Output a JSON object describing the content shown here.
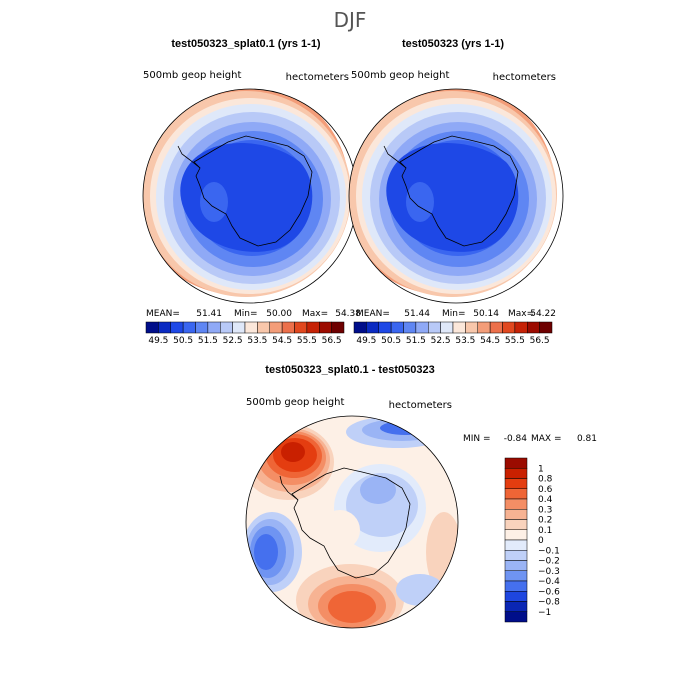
{
  "page": {
    "title": "DJF",
    "colors": {
      "background": "#ffffff",
      "outline": "#000000"
    }
  },
  "chart_data": [
    {
      "type": "polar-contour",
      "id": "left",
      "title": "test050323_splat0.1 (yrs 1-1)",
      "left_label": "500mb  geop  height",
      "right_label": "hectometers",
      "mean_label": "MEAN=",
      "mean": "51.41",
      "min_label": "Min=",
      "min": "50.00",
      "max_label": "Max=",
      "max": "54.38",
      "levels": [
        "49.5",
        "50.5",
        "51.5",
        "52.5",
        "53.5",
        "54.5",
        "55.5",
        "56.5"
      ],
      "palette": [
        "#000e8a",
        "#0a2ac2",
        "#1e48e6",
        "#3a66f0",
        "#5f86f3",
        "#8fa9f6",
        "#b8c9f7",
        "#dfe8f9",
        "#fbe7da",
        "#f8c7ab",
        "#f39d79",
        "#ec704b",
        "#e1481f",
        "#c62206",
        "#9c0b00",
        "#6e0000"
      ]
    },
    {
      "type": "polar-contour",
      "id": "right",
      "title": "test050323 (yrs 1-1)",
      "left_label": "500mb  geop  height",
      "right_label": "hectometers",
      "mean_label": "MEAN=",
      "mean": "51.44",
      "min_label": "Min=",
      "min": "50.14",
      "max_label": "Max=",
      "max": "54.22",
      "levels": [
        "49.5",
        "50.5",
        "51.5",
        "52.5",
        "53.5",
        "54.5",
        "55.5",
        "56.5"
      ],
      "palette": [
        "#000e8a",
        "#0a2ac2",
        "#1e48e6",
        "#3a66f0",
        "#5f86f3",
        "#8fa9f6",
        "#b8c9f7",
        "#dfe8f9",
        "#fbe7da",
        "#f8c7ab",
        "#f39d79",
        "#ec704b",
        "#e1481f",
        "#c62206",
        "#9c0b00",
        "#6e0000"
      ]
    },
    {
      "type": "polar-contour",
      "id": "diff",
      "title": "test050323_splat0.1 - test050323",
      "left_label": "500mb  geop  height",
      "right_label": "hectometers",
      "min_label": "MIN =",
      "min": "-0.84",
      "max_label": "MAX =",
      "max": "0.81",
      "levels": [
        "1",
        "0.8",
        "0.6",
        "0.4",
        "0.3",
        "0.2",
        "0.1",
        "0",
        "−0.1",
        "−0.2",
        "−0.3",
        "−0.4",
        "−0.6",
        "−0.8",
        "−1"
      ],
      "palette": [
        "#9b0b00",
        "#c92000",
        "#e43d10",
        "#ef6536",
        "#f48e65",
        "#f7b393",
        "#f9d3bd",
        "#fdf0e6",
        "#e2ebfb",
        "#bfd0f8",
        "#9ab4f5",
        "#6f94f2",
        "#4570ee",
        "#1e46e0",
        "#0a26b4",
        "#000e8a"
      ]
    }
  ]
}
